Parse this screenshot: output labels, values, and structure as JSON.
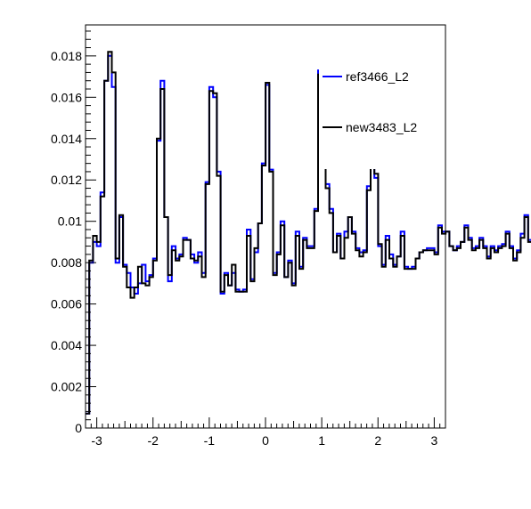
{
  "chart_data": {
    "type": "line",
    "style": "step-histogram",
    "title": "",
    "xlabel": "",
    "ylabel": "",
    "xlim": [
      -3.2,
      3.2
    ],
    "ylim": [
      0,
      0.0195
    ],
    "x_ticks": [
      -3,
      -2,
      -1,
      0,
      1,
      2,
      3
    ],
    "x_tick_labels": [
      "-3",
      "-2",
      "-1",
      "0",
      "1",
      "2",
      "3"
    ],
    "y_ticks": [
      0,
      0.002,
      0.004,
      0.006,
      0.008,
      0.01,
      0.012,
      0.014,
      0.016,
      0.018
    ],
    "y_tick_labels": [
      "0",
      "0.002",
      "0.004",
      "0.006",
      "0.008",
      "0.01",
      "0.012",
      "0.014",
      "0.016",
      "0.018"
    ],
    "grid": false,
    "legend_position": "top-right",
    "bin_edges_start": -3.2,
    "bin_width": 0.0667,
    "series": [
      {
        "name": "ref3466_L2",
        "color": "#0000ff",
        "values": [
          0.0007,
          0.008,
          0.009,
          0.0088,
          0.0114,
          0.0168,
          0.018,
          0.0165,
          0.008,
          0.0102,
          0.0079,
          0.0075,
          0.0068,
          0.0065,
          0.007,
          0.0079,
          0.0071,
          0.0074,
          0.0082,
          0.0139,
          0.0168,
          0.0102,
          0.0071,
          0.0088,
          0.0082,
          0.0084,
          0.0092,
          0.0091,
          0.0084,
          0.008,
          0.0085,
          0.0075,
          0.0119,
          0.0165,
          0.016,
          0.0124,
          0.0065,
          0.0075,
          0.0069,
          0.0075,
          0.0067,
          0.0066,
          0.0067,
          0.0096,
          0.0072,
          0.0085,
          0.0099,
          0.0128,
          0.0166,
          0.0125,
          0.0075,
          0.0085,
          0.01,
          0.0073,
          0.0081,
          0.007,
          0.0095,
          0.0078,
          0.0092,
          0.0088,
          0.0088,
          0.0106,
          0.0173,
          0.0157,
          0.0118,
          0.0106,
          0.0085,
          0.0094,
          0.0082,
          0.0095,
          0.0102,
          0.0095,
          0.0087,
          0.0085,
          0.0086,
          0.0117,
          0.0185,
          0.0121,
          0.0088,
          0.0079,
          0.0093,
          0.0084,
          0.0079,
          0.0083,
          0.0095,
          0.0078,
          0.0077,
          0.0078,
          0.0082,
          0.0085,
          0.0086,
          0.0087,
          0.0087,
          0.0085,
          0.0098,
          0.0095,
          0.0095,
          0.0088,
          0.0086,
          0.0088,
          0.009,
          0.0098,
          0.0092,
          0.0087,
          0.0088,
          0.0092,
          0.0088,
          0.0083,
          0.0088,
          0.0086,
          0.0088,
          0.0089,
          0.0095,
          0.0088,
          0.0082,
          0.0086,
          0.0094,
          0.0103,
          0.0091,
          0.0088,
          0.0082,
          0.0085,
          0.0087,
          0.0005
        ]
      },
      {
        "name": "new3483_L2",
        "color": "#000000",
        "values": [
          0.0007,
          0.0081,
          0.0093,
          0.009,
          0.0112,
          0.0168,
          0.0182,
          0.0172,
          0.0082,
          0.0103,
          0.0078,
          0.0068,
          0.0063,
          0.0068,
          0.0078,
          0.007,
          0.0069,
          0.0073,
          0.0081,
          0.014,
          0.0164,
          0.0102,
          0.0074,
          0.0086,
          0.0081,
          0.0083,
          0.0091,
          0.0091,
          0.0082,
          0.0081,
          0.0083,
          0.0073,
          0.0118,
          0.0163,
          0.0162,
          0.0122,
          0.0066,
          0.0074,
          0.0069,
          0.0079,
          0.0066,
          0.0066,
          0.0066,
          0.0093,
          0.0071,
          0.0087,
          0.0099,
          0.0127,
          0.0167,
          0.0124,
          0.0074,
          0.0084,
          0.0098,
          0.0073,
          0.008,
          0.0069,
          0.0093,
          0.0077,
          0.0091,
          0.0087,
          0.0087,
          0.0105,
          0.0171,
          0.0155,
          0.0116,
          0.0104,
          0.0085,
          0.0093,
          0.0082,
          0.0092,
          0.0102,
          0.0094,
          0.0086,
          0.0083,
          0.0085,
          0.0115,
          0.0183,
          0.0123,
          0.0089,
          0.0078,
          0.0091,
          0.0082,
          0.0078,
          0.0083,
          0.0093,
          0.0077,
          0.0077,
          0.0077,
          0.0082,
          0.0085,
          0.0086,
          0.0086,
          0.0086,
          0.0084,
          0.0097,
          0.0094,
          0.0095,
          0.0088,
          0.0086,
          0.0087,
          0.009,
          0.0097,
          0.0091,
          0.0086,
          0.0087,
          0.0091,
          0.0087,
          0.0082,
          0.0087,
          0.0085,
          0.0087,
          0.0088,
          0.0094,
          0.0087,
          0.0081,
          0.0085,
          0.0092,
          0.0102,
          0.009,
          0.0087,
          0.0081,
          0.0084,
          0.0086,
          0.0005
        ]
      }
    ]
  }
}
